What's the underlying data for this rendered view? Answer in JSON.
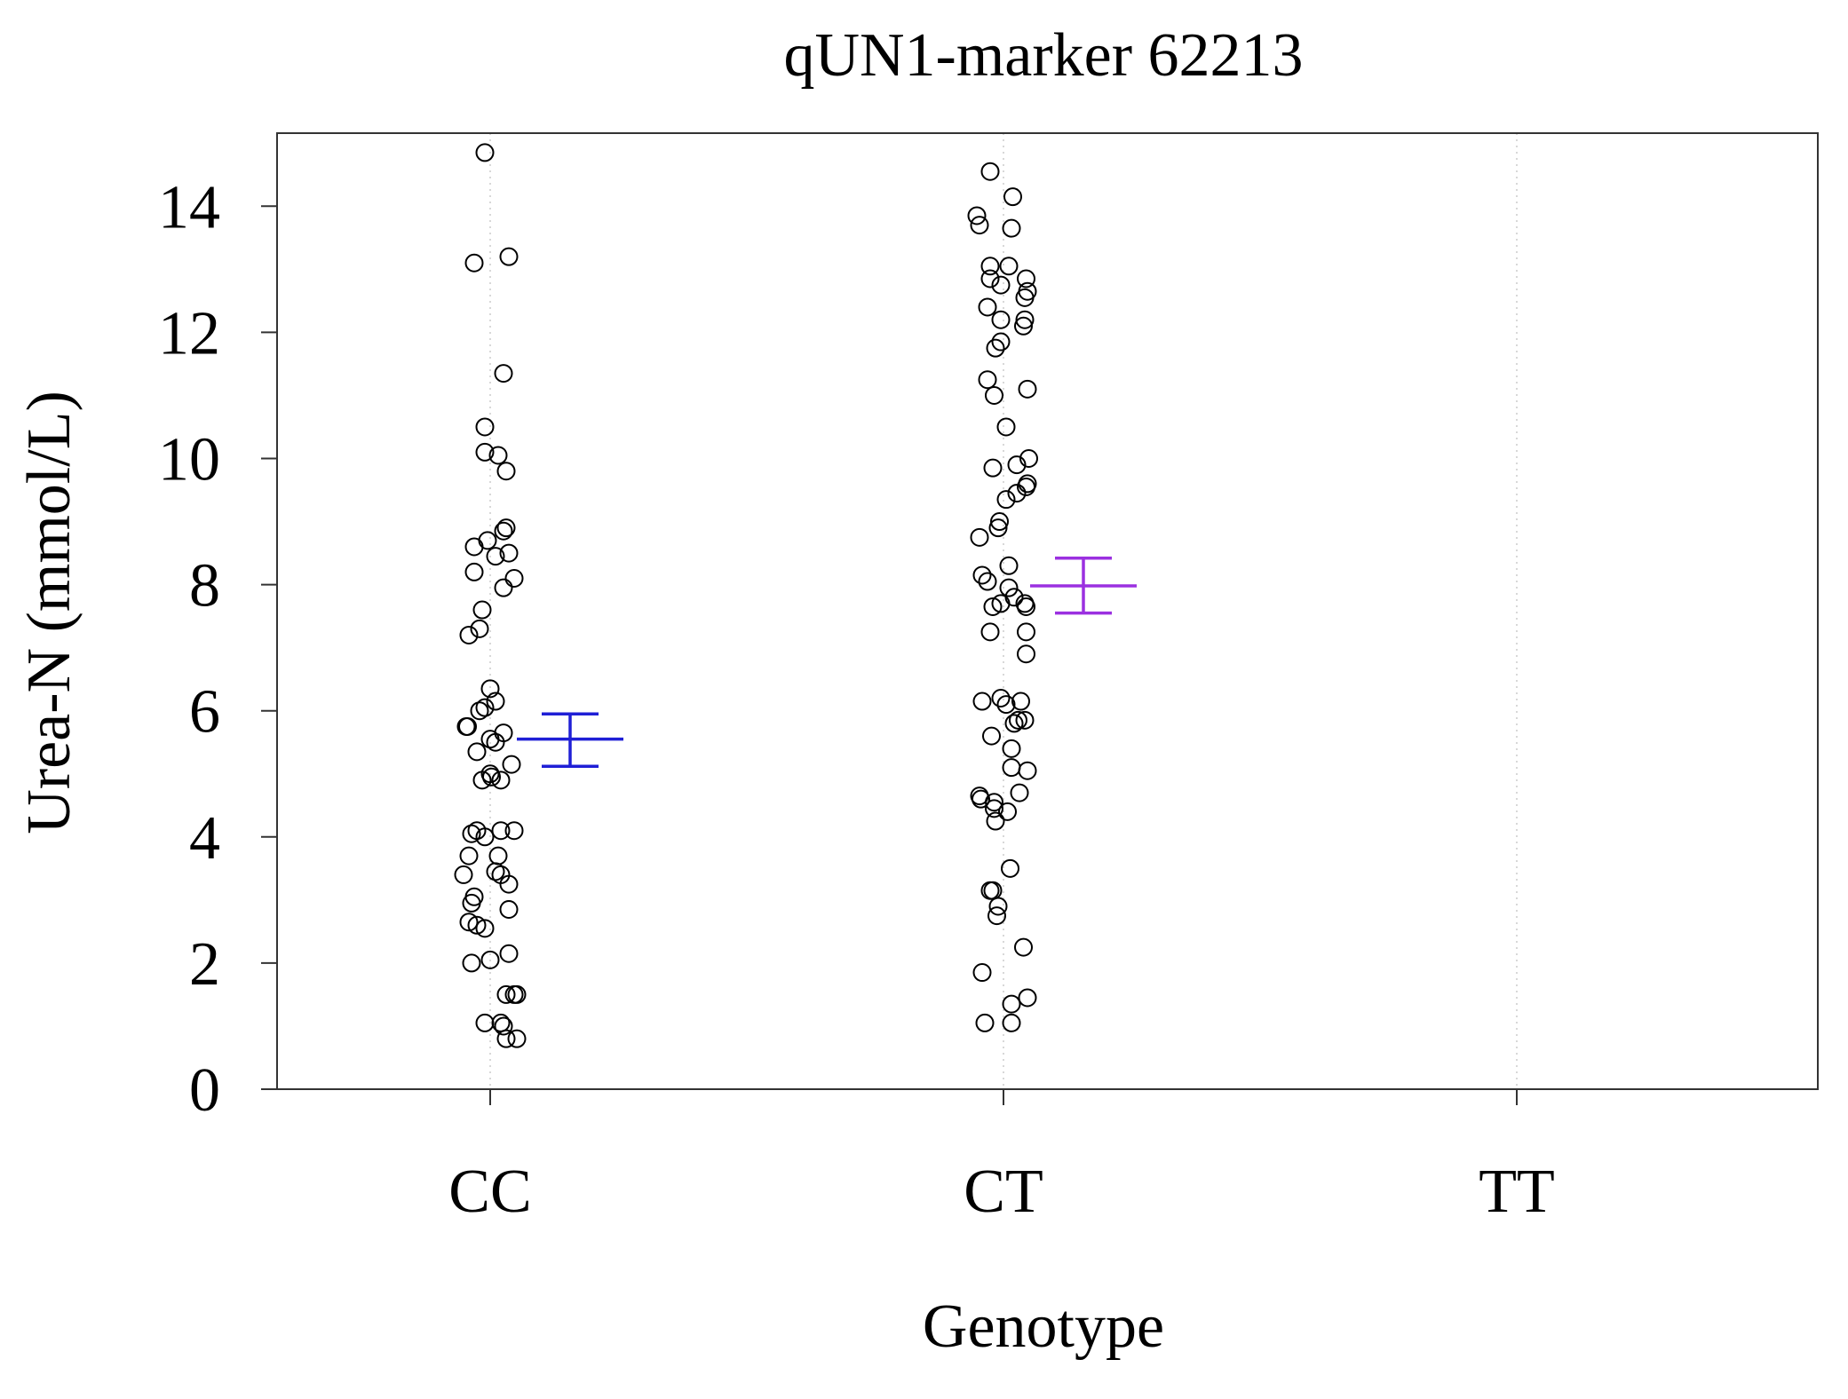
{
  "chart_data": {
    "type": "scatter",
    "title": "qUN1-marker 62213",
    "xlabel": "Genotype",
    "ylabel": "Urea-N (mmol/L)",
    "categories": [
      "CC",
      "CT",
      "TT"
    ],
    "ylim": [
      0,
      15.2
    ],
    "yticks": [
      0,
      2,
      4,
      6,
      8,
      10,
      12,
      14
    ],
    "grid": "vertical dotted lines at categories",
    "marker": "open-circle",
    "series": [
      {
        "category": "CC",
        "points": [
          {
            "x": -0.02,
            "y": 14.85
          },
          {
            "x": -0.06,
            "y": 13.1
          },
          {
            "x": 0.07,
            "y": 13.2
          },
          {
            "x": 0.05,
            "y": 11.35
          },
          {
            "x": -0.02,
            "y": 10.5
          },
          {
            "x": -0.02,
            "y": 10.1
          },
          {
            "x": 0.03,
            "y": 10.05
          },
          {
            "x": 0.06,
            "y": 9.8
          },
          {
            "x": -0.06,
            "y": 8.6
          },
          {
            "x": -0.01,
            "y": 8.7
          },
          {
            "x": 0.05,
            "y": 8.85
          },
          {
            "x": 0.06,
            "y": 8.9
          },
          {
            "x": -0.06,
            "y": 8.2
          },
          {
            "x": 0.02,
            "y": 8.45
          },
          {
            "x": 0.07,
            "y": 8.5
          },
          {
            "x": 0.05,
            "y": 7.95
          },
          {
            "x": 0.09,
            "y": 8.1
          },
          {
            "x": -0.03,
            "y": 7.6
          },
          {
            "x": -0.08,
            "y": 7.2
          },
          {
            "x": -0.04,
            "y": 7.3
          },
          {
            "x": 0.0,
            "y": 6.35
          },
          {
            "x": -0.02,
            "y": 6.05
          },
          {
            "x": 0.02,
            "y": 6.15
          },
          {
            "x": -0.04,
            "y": 6.0
          },
          {
            "x": -0.09,
            "y": 5.75
          },
          {
            "x": -0.085,
            "y": 5.75
          },
          {
            "x": 0.0,
            "y": 5.55
          },
          {
            "x": 0.02,
            "y": 5.5
          },
          {
            "x": 0.05,
            "y": 5.65
          },
          {
            "x": -0.05,
            "y": 5.35
          },
          {
            "x": 0.08,
            "y": 5.15
          },
          {
            "x": 0.0,
            "y": 5.0
          },
          {
            "x": 0.005,
            "y": 4.95
          },
          {
            "x": -0.03,
            "y": 4.9
          },
          {
            "x": 0.04,
            "y": 4.9
          },
          {
            "x": -0.07,
            "y": 4.05
          },
          {
            "x": -0.05,
            "y": 4.1
          },
          {
            "x": -0.02,
            "y": 4.0
          },
          {
            "x": 0.04,
            "y": 4.1
          },
          {
            "x": 0.09,
            "y": 4.1
          },
          {
            "x": -0.08,
            "y": 3.7
          },
          {
            "x": 0.03,
            "y": 3.7
          },
          {
            "x": 0.02,
            "y": 3.45
          },
          {
            "x": 0.04,
            "y": 3.4
          },
          {
            "x": -0.1,
            "y": 3.4
          },
          {
            "x": 0.07,
            "y": 3.25
          },
          {
            "x": -0.06,
            "y": 3.05
          },
          {
            "x": -0.07,
            "y": 2.95
          },
          {
            "x": 0.07,
            "y": 2.85
          },
          {
            "x": -0.08,
            "y": 2.65
          },
          {
            "x": -0.05,
            "y": 2.6
          },
          {
            "x": -0.02,
            "y": 2.55
          },
          {
            "x": 0.07,
            "y": 2.15
          },
          {
            "x": -0.07,
            "y": 2.0
          },
          {
            "x": 0.0,
            "y": 2.05
          },
          {
            "x": 0.06,
            "y": 1.5
          },
          {
            "x": 0.09,
            "y": 1.5
          },
          {
            "x": 0.1,
            "y": 1.5
          },
          {
            "x": -0.02,
            "y": 1.05
          },
          {
            "x": 0.04,
            "y": 1.05
          },
          {
            "x": 0.05,
            "y": 1.0
          },
          {
            "x": 0.06,
            "y": 0.8
          },
          {
            "x": 0.1,
            "y": 0.8
          }
        ]
      },
      {
        "category": "CT",
        "points": [
          {
            "x": -0.05,
            "y": 14.55
          },
          {
            "x": 0.035,
            "y": 14.15
          },
          {
            "x": -0.1,
            "y": 13.85
          },
          {
            "x": -0.09,
            "y": 13.7
          },
          {
            "x": 0.03,
            "y": 13.65
          },
          {
            "x": -0.05,
            "y": 13.05
          },
          {
            "x": 0.02,
            "y": 13.05
          },
          {
            "x": -0.05,
            "y": 12.85
          },
          {
            "x": -0.01,
            "y": 12.75
          },
          {
            "x": 0.085,
            "y": 12.85
          },
          {
            "x": 0.08,
            "y": 12.55
          },
          {
            "x": 0.09,
            "y": 12.65
          },
          {
            "x": -0.06,
            "y": 12.4
          },
          {
            "x": -0.01,
            "y": 12.2
          },
          {
            "x": 0.08,
            "y": 12.2
          },
          {
            "x": 0.075,
            "y": 12.1
          },
          {
            "x": -0.01,
            "y": 11.85
          },
          {
            "x": -0.03,
            "y": 11.75
          },
          {
            "x": -0.06,
            "y": 11.25
          },
          {
            "x": -0.035,
            "y": 11.0
          },
          {
            "x": 0.09,
            "y": 11.1
          },
          {
            "x": 0.01,
            "y": 10.5
          },
          {
            "x": -0.04,
            "y": 9.85
          },
          {
            "x": 0.05,
            "y": 9.9
          },
          {
            "x": 0.095,
            "y": 10.0
          },
          {
            "x": 0.09,
            "y": 9.6
          },
          {
            "x": 0.085,
            "y": 9.55
          },
          {
            "x": 0.05,
            "y": 9.45
          },
          {
            "x": 0.01,
            "y": 9.35
          },
          {
            "x": -0.015,
            "y": 9.0
          },
          {
            "x": -0.02,
            "y": 8.9
          },
          {
            "x": -0.09,
            "y": 8.75
          },
          {
            "x": 0.02,
            "y": 8.3
          },
          {
            "x": -0.08,
            "y": 8.15
          },
          {
            "x": -0.06,
            "y": 8.05
          },
          {
            "x": 0.02,
            "y": 7.95
          },
          {
            "x": 0.04,
            "y": 7.8
          },
          {
            "x": 0.08,
            "y": 7.7
          },
          {
            "x": 0.085,
            "y": 7.65
          },
          {
            "x": -0.04,
            "y": 7.65
          },
          {
            "x": -0.01,
            "y": 7.7
          },
          {
            "x": -0.05,
            "y": 7.25
          },
          {
            "x": 0.085,
            "y": 7.25
          },
          {
            "x": 0.085,
            "y": 6.9
          },
          {
            "x": -0.08,
            "y": 6.15
          },
          {
            "x": -0.01,
            "y": 6.2
          },
          {
            "x": 0.01,
            "y": 6.1
          },
          {
            "x": 0.065,
            "y": 6.15
          },
          {
            "x": 0.04,
            "y": 5.8
          },
          {
            "x": 0.055,
            "y": 5.85
          },
          {
            "x": 0.08,
            "y": 5.85
          },
          {
            "x": -0.045,
            "y": 5.6
          },
          {
            "x": 0.03,
            "y": 5.4
          },
          {
            "x": 0.03,
            "y": 5.1
          },
          {
            "x": 0.09,
            "y": 5.05
          },
          {
            "x": -0.09,
            "y": 4.65
          },
          {
            "x": -0.085,
            "y": 4.6
          },
          {
            "x": -0.035,
            "y": 4.55
          },
          {
            "x": 0.06,
            "y": 4.7
          },
          {
            "x": -0.035,
            "y": 4.45
          },
          {
            "x": 0.015,
            "y": 4.4
          },
          {
            "x": -0.03,
            "y": 4.25
          },
          {
            "x": 0.025,
            "y": 3.5
          },
          {
            "x": -0.05,
            "y": 3.15
          },
          {
            "x": -0.04,
            "y": 3.15
          },
          {
            "x": -0.02,
            "y": 2.9
          },
          {
            "x": -0.025,
            "y": 2.75
          },
          {
            "x": 0.075,
            "y": 2.25
          },
          {
            "x": -0.08,
            "y": 1.85
          },
          {
            "x": 0.03,
            "y": 1.35
          },
          {
            "x": 0.09,
            "y": 1.45
          },
          {
            "x": -0.07,
            "y": 1.05
          },
          {
            "x": 0.03,
            "y": 1.05
          }
        ]
      },
      {
        "category": "TT",
        "points": []
      }
    ],
    "error_bars": [
      {
        "category": "CC",
        "offset": 0.3,
        "mean": 5.55,
        "lower": 5.12,
        "upper": 5.95,
        "color": "#1f1fd6"
      },
      {
        "category": "CT",
        "offset": 0.3,
        "mean": 7.98,
        "lower": 7.55,
        "upper": 8.42,
        "color": "#9b30e0"
      }
    ]
  }
}
